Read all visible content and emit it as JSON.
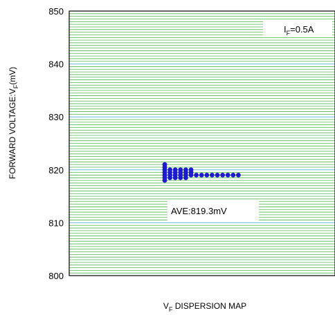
{
  "chart_data": {
    "type": "scatter",
    "title": "",
    "xlabel": "V",
    "xlabel_sub": "F",
    "xlabel_tail": " DISPERSION MAP",
    "ylabel": "FORWARD VOLTAGE:V",
    "ylabel_sub": "F",
    "ylabel_tail": "(mV)",
    "ylim": [
      800,
      850
    ],
    "yticks": [
      800,
      810,
      820,
      830,
      840,
      850
    ],
    "grid": true,
    "legend": "none",
    "condition_prefix": "I",
    "condition_sub": "F",
    "condition_tail": "=0.5A",
    "average_label": "AVE:819.3mV",
    "colors": {
      "points": "#1c1ccc",
      "minor_grid": "#4cb84c",
      "major_grid": "#66b8e6",
      "frame": "#000000"
    },
    "columns": [
      {
        "x": 1,
        "y": [
          818,
          818.5,
          819,
          819.5,
          820,
          820.5,
          821
        ]
      },
      {
        "x": 2,
        "y": [
          818.5,
          819,
          819.5,
          820
        ]
      },
      {
        "x": 3,
        "y": [
          818.5,
          819,
          819.5,
          820
        ]
      },
      {
        "x": 4,
        "y": [
          818.5,
          819,
          819.5,
          820
        ]
      },
      {
        "x": 5,
        "y": [
          818.5,
          819,
          819.5,
          820
        ]
      },
      {
        "x": 6,
        "y": [
          819,
          819.5,
          820
        ]
      },
      {
        "x": 7,
        "y": [
          819
        ]
      },
      {
        "x": 8,
        "y": [
          819
        ]
      },
      {
        "x": 9,
        "y": [
          819
        ]
      },
      {
        "x": 10,
        "y": [
          819
        ]
      },
      {
        "x": 11,
        "y": [
          819
        ]
      },
      {
        "x": 12,
        "y": [
          819
        ]
      },
      {
        "x": 13,
        "y": [
          819
        ]
      },
      {
        "x": 14,
        "y": [
          819
        ]
      },
      {
        "x": 15,
        "y": [
          819
        ]
      }
    ]
  }
}
